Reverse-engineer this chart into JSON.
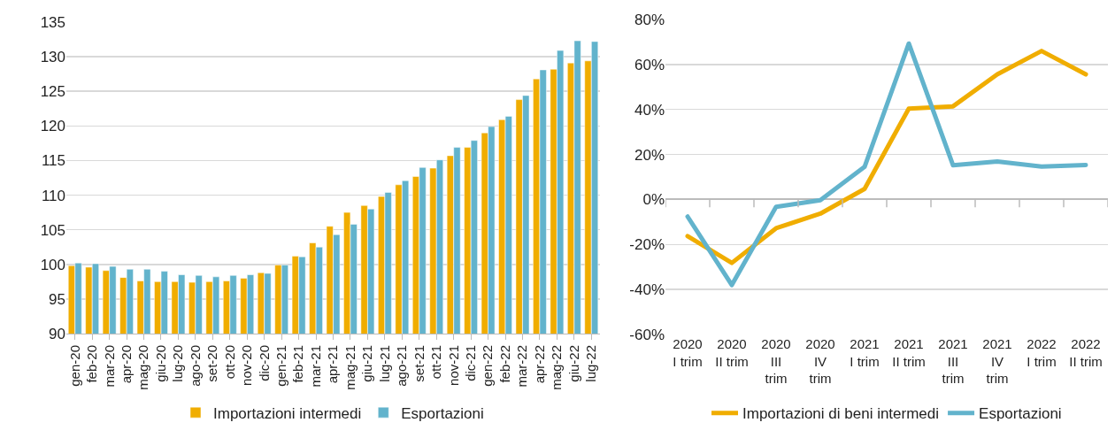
{
  "chart_data": [
    {
      "type": "bar",
      "categories": [
        "gen-20",
        "feb-20",
        "mar-20",
        "apr-20",
        "mag-20",
        "giu-20",
        "lug-20",
        "ago-20",
        "set-20",
        "ott-20",
        "nov-20",
        "dic-20",
        "gen-21",
        "feb-21",
        "mar-21",
        "apr-21",
        "mag-21",
        "giu-21",
        "lug-21",
        "ago-21",
        "set-21",
        "ott-21",
        "nov-21",
        "dic-21",
        "gen-22",
        "feb-22",
        "mar-22",
        "apr-22",
        "mag-22",
        "giu-22",
        "lug-22"
      ],
      "series": [
        {
          "name": "Importazioni intermedi",
          "color": "#f0ad00",
          "values": [
            99.8,
            99.6,
            99.1,
            98.1,
            97.6,
            97.5,
            97.5,
            97.4,
            97.5,
            97.6,
            98.0,
            98.8,
            99.9,
            101.2,
            103.1,
            105.5,
            107.5,
            108.5,
            109.8,
            111.5,
            112.7,
            113.9,
            115.7,
            116.9,
            119.0,
            120.9,
            123.8,
            126.8,
            128.2,
            129.1,
            129.4
          ]
        },
        {
          "name": "Esportazioni",
          "color": "#62b3cc",
          "values": [
            100.2,
            100.1,
            99.7,
            99.3,
            99.3,
            99.0,
            98.5,
            98.4,
            98.2,
            98.4,
            98.5,
            98.7,
            99.9,
            101.1,
            102.5,
            104.3,
            105.8,
            108.0,
            110.4,
            112.1,
            114.0,
            115.1,
            116.9,
            117.9,
            119.9,
            121.4,
            124.4,
            128.1,
            130.9,
            132.3,
            132.2
          ]
        }
      ],
      "ylim": [
        90,
        135
      ],
      "yticks": [
        90,
        95,
        100,
        105,
        110,
        115,
        120,
        125,
        130,
        135
      ],
      "grid": "y",
      "legend": "bottom"
    },
    {
      "type": "line",
      "categories": [
        "2020 I trim",
        "2020 II trim",
        "2020 III trim",
        "2020 IV trim",
        "2021 I trim",
        "2021 II trim",
        "2021 III trim",
        "2021 IV trim",
        "2022 I trim",
        "2022 II trim"
      ],
      "series": [
        {
          "name": "Importazioni di beni intermedi",
          "color": "#f0ad00",
          "values": [
            -16.3,
            -28.2,
            -12.8,
            -6.3,
            4.7,
            40.4,
            41.4,
            55.6,
            66.0,
            55.6
          ]
        },
        {
          "name": "Esportazioni",
          "color": "#62b3cc",
          "values": [
            -7.6,
            -38.0,
            -3.3,
            -0.3,
            14.5,
            69.3,
            15.2,
            16.9,
            14.6,
            15.3
          ]
        }
      ],
      "ylim": [
        -60,
        80
      ],
      "yticks": [
        {
          "value": -60,
          "label": "-60%"
        },
        {
          "value": -40,
          "label": "-40%"
        },
        {
          "value": -20,
          "label": "-20%"
        },
        {
          "value": 0,
          "label": "0%"
        },
        {
          "value": 20,
          "label": "20%"
        },
        {
          "value": 40,
          "label": "40%"
        },
        {
          "value": 60,
          "label": "60%"
        },
        {
          "value": 80,
          "label": "80%"
        }
      ],
      "grid": "y",
      "legend": "bottom",
      "line_style": "solid",
      "marker": "none"
    }
  ]
}
